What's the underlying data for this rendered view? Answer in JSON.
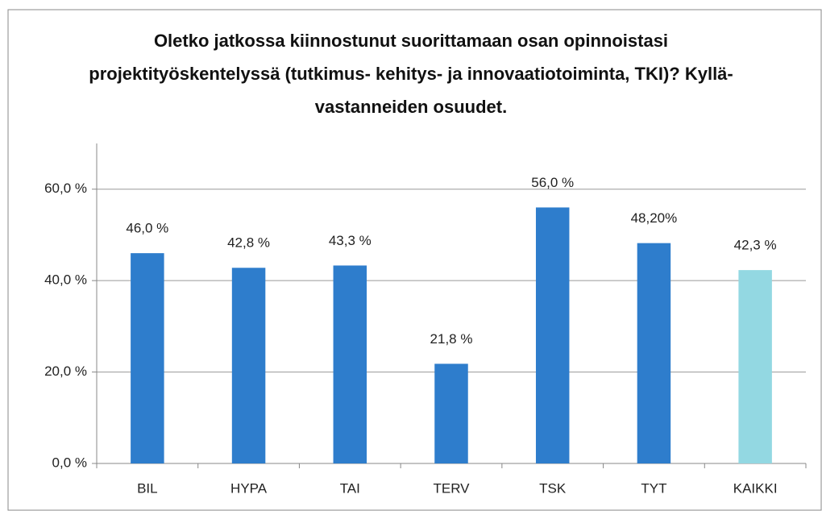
{
  "chart_data": {
    "type": "bar",
    "title": "Oletko jatkossa kiinnostunut suorittamaan osan opinnoistasi projektityöskentelyssä (tutkimus- kehitys- ja innovaatiotoiminta, TKI)? Kyllä-vastanneiden osuudet.",
    "categories": [
      "BIL",
      "HYPA",
      "TAI",
      "TERV",
      "TSK",
      "TYT",
      "KAIKKI"
    ],
    "values": [
      46.0,
      42.8,
      43.3,
      21.8,
      56.0,
      48.2,
      42.3
    ],
    "value_labels": [
      "46,0 %",
      "42,8 %",
      "43,3 %",
      "21,8 %",
      "56,0 %",
      "48,20%",
      "42,3 %"
    ],
    "colors": [
      "#2e7dcc",
      "#2e7dcc",
      "#2e7dcc",
      "#2e7dcc",
      "#2e7dcc",
      "#2e7dcc",
      "#93d8e2"
    ],
    "ylim": [
      0,
      70
    ],
    "yticks": [
      {
        "value": 0,
        "label": "0,0 %"
      },
      {
        "value": 20,
        "label": "20,0 %"
      },
      {
        "value": 40,
        "label": "40,0 %"
      },
      {
        "value": 60,
        "label": "60,0 %"
      }
    ],
    "grid": true
  }
}
